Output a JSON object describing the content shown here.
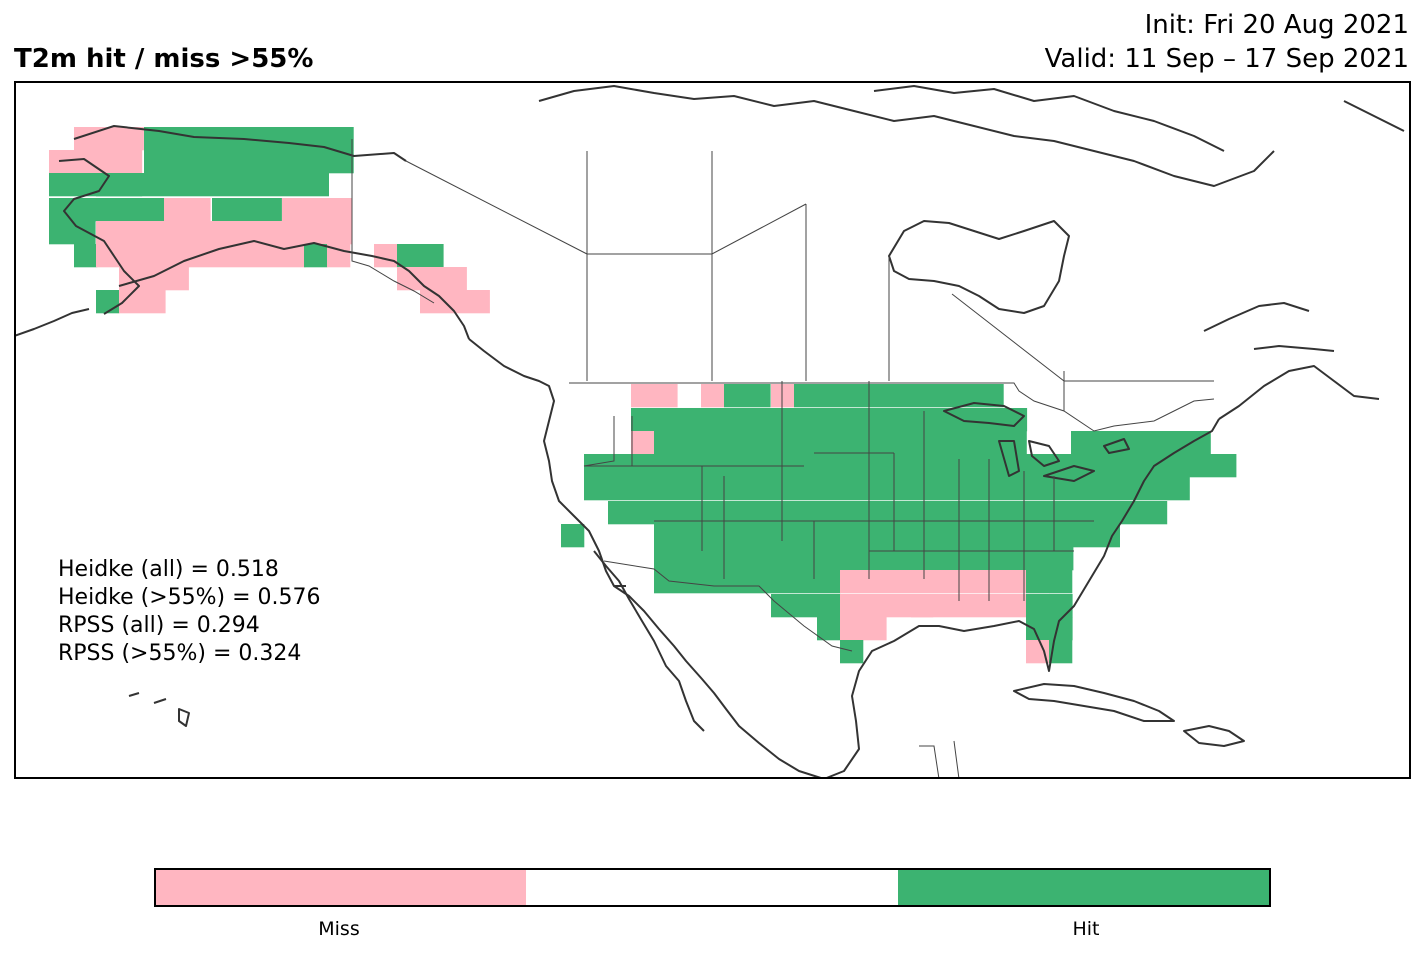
{
  "header": {
    "title": "T2m hit / miss  >55%",
    "init": "Init: Fri 20 Aug 2021",
    "valid": "Valid: 11 Sep – 17 Sep 2021"
  },
  "scores": [
    "Heidke (all) = 0.518",
    "Heidke (>55%) = 0.576",
    "RPSS (all) = 0.294",
    "RPSS (>55%) = 0.324"
  ],
  "legend": {
    "miss_label": "Miss",
    "hit_label": "Hit",
    "colors": {
      "miss": "#ffb6c1",
      "neutral": "#ffffff",
      "hit": "#3cb371"
    }
  },
  "chart_data": {
    "type": "heatmap",
    "categories": [
      "Miss",
      "Hit"
    ],
    "colors": {
      "miss": "#ffb6c1",
      "hit": "#3cb371",
      "coast": "#333333",
      "border": "#444444"
    }
  }
}
